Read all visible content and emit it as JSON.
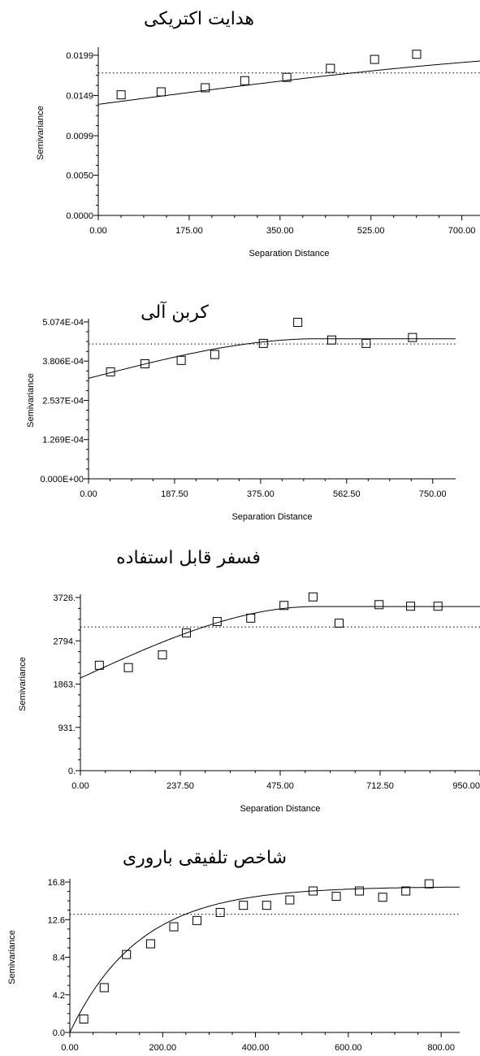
{
  "chart_data": [
    {
      "type": "scatter",
      "title": "هدایت اکتریکی",
      "xlabel": "Separation Distance",
      "ylabel": "Semivariance",
      "xlim": [
        0,
        735
      ],
      "ylim": [
        0,
        0.0205
      ],
      "x_ticks": [
        0,
        175,
        350,
        525,
        700
      ],
      "x_tick_labels": [
        "0.00",
        "175.00",
        "350.00",
        "525.00",
        "700.00"
      ],
      "y_ticks": [
        0,
        0.005,
        0.0099,
        0.0149,
        0.0199
      ],
      "y_tick_labels": [
        "0.0000",
        "0.0050",
        "0.0099",
        "0.0149",
        "0.0199"
      ],
      "points": [
        [
          44,
          0.01498
        ],
        [
          121,
          0.01535
        ],
        [
          206,
          0.01586
        ],
        [
          282,
          0.01674
        ],
        [
          363,
          0.01715
        ],
        [
          447,
          0.01827
        ],
        [
          532,
          0.01938
        ],
        [
          613,
          0.02002
        ]
      ],
      "model": {
        "kind": "spherical",
        "nugget": 0.0138,
        "sill": 0.0203,
        "range": 1150
      },
      "sill_line": 0.0177
    },
    {
      "type": "scatter",
      "title": "کربن آلی",
      "xlabel": "Separation Distance",
      "ylabel": "Semivariance",
      "xlim": [
        0,
        800
      ],
      "ylim": [
        0,
        0.0005074
      ],
      "x_ticks": [
        0,
        187.5,
        375,
        562.5,
        750
      ],
      "x_tick_labels": [
        "0.00",
        "187.50",
        "375.00",
        "562.50",
        "750.00"
      ],
      "y_ticks": [
        0,
        0.0001269,
        0.0002537,
        0.0003806,
        0.0005074
      ],
      "y_tick_labels": [
        "0.000E+00",
        "1.269E-04",
        "2.537E-04",
        "3.806E-04",
        "5.074E-04"
      ],
      "points": [
        [
          48,
          0.000346
        ],
        [
          123,
          0.000372
        ],
        [
          202,
          0.000383
        ],
        [
          275,
          0.000402
        ],
        [
          381,
          0.000438
        ],
        [
          456,
          0.000506
        ],
        [
          530,
          0.000449
        ],
        [
          605,
          0.000438
        ],
        [
          706,
          0.000457
        ]
      ],
      "model": {
        "kind": "spherical",
        "nugget": 0.000325,
        "sill": 0.000453,
        "range": 500
      },
      "sill_line": 0.000436
    },
    {
      "type": "scatter",
      "title": "فسفر قابل استفاده",
      "xlabel": "Separation Distance",
      "ylabel": "Semivariance",
      "xlim": [
        0,
        950
      ],
      "ylim": [
        0,
        3726
      ],
      "x_ticks": [
        0,
        237.5,
        475,
        712.5,
        950
      ],
      "x_tick_labels": [
        "0.00",
        "237.50",
        "475.00",
        "712.50",
        "950.00"
      ],
      "y_ticks": [
        0,
        931,
        1863,
        2794,
        3726
      ],
      "y_tick_labels": [
        "0.",
        "931.",
        "1863.",
        "2794.",
        "3726."
      ],
      "points": [
        [
          45,
          2268
        ],
        [
          114,
          2218
        ],
        [
          195,
          2491
        ],
        [
          252,
          2962
        ],
        [
          325,
          3209
        ],
        [
          405,
          3282
        ],
        [
          484,
          3555
        ],
        [
          553,
          3739
        ],
        [
          615,
          3173
        ],
        [
          710,
          3572
        ],
        [
          785,
          3539
        ],
        [
          850,
          3539
        ]
      ],
      "model": {
        "kind": "spherical",
        "nugget": 1995,
        "sill": 3532,
        "range": 560
      },
      "sill_line": 3092
    },
    {
      "type": "scatter",
      "title": "شاخص تلفیقی باروری",
      "xlabel": "Separation Distance",
      "ylabel": "Semivariance",
      "xlim": [
        0,
        840
      ],
      "ylim": [
        0,
        16.8
      ],
      "x_ticks": [
        0,
        200,
        400,
        600,
        800
      ],
      "x_tick_labels": [
        "0.00",
        "200.00",
        "400.00",
        "600.00",
        "800.00"
      ],
      "y_ticks": [
        0,
        4.2,
        8.4,
        12.6,
        16.8
      ],
      "y_tick_labels": [
        "0.0",
        "4.2",
        "8.4",
        "12.6",
        "16.8"
      ],
      "points": [
        [
          30,
          1.5
        ],
        [
          74,
          5.0
        ],
        [
          122,
          8.7
        ],
        [
          174,
          9.9
        ],
        [
          224,
          11.8
        ],
        [
          274,
          12.5
        ],
        [
          324,
          13.4
        ],
        [
          374,
          14.2
        ],
        [
          424,
          14.2
        ],
        [
          474,
          14.8
        ],
        [
          524,
          15.8
        ],
        [
          574,
          15.2
        ],
        [
          624,
          15.8
        ],
        [
          674,
          15.1
        ],
        [
          724,
          15.8
        ],
        [
          774,
          16.6
        ]
      ],
      "model": {
        "kind": "exponential",
        "nugget": 0,
        "sill": 16.3,
        "range": 150
      },
      "sill_line": 13.2
    }
  ]
}
